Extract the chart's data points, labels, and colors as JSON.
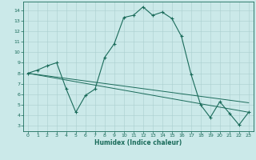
{
  "title": "",
  "xlabel": "Humidex (Indice chaleur)",
  "ylabel": "",
  "bg_color": "#cbe9e9",
  "grid_color": "#aacfcf",
  "line_color": "#1a6b5a",
  "xlim": [
    -0.5,
    23.5
  ],
  "ylim": [
    2.5,
    14.8
  ],
  "yticks": [
    3,
    4,
    5,
    6,
    7,
    8,
    9,
    10,
    11,
    12,
    13,
    14
  ],
  "xticks": [
    0,
    1,
    2,
    3,
    4,
    5,
    6,
    7,
    8,
    9,
    10,
    11,
    12,
    13,
    14,
    15,
    16,
    17,
    18,
    19,
    20,
    21,
    22,
    23
  ],
  "series_main": {
    "x": [
      0,
      1,
      2,
      3,
      4,
      5,
      6,
      7,
      8,
      9,
      10,
      11,
      12,
      13,
      14,
      15,
      16,
      17,
      18,
      19,
      20,
      21,
      22,
      23
    ],
    "y": [
      8.0,
      8.3,
      8.7,
      9.0,
      6.5,
      4.3,
      5.9,
      6.5,
      9.5,
      10.8,
      13.3,
      13.5,
      14.3,
      13.5,
      13.8,
      13.2,
      11.5,
      7.9,
      5.0,
      3.8,
      5.3,
      4.2,
      3.1,
      4.3
    ]
  },
  "trend1": {
    "x": [
      0,
      23
    ],
    "y": [
      8.0,
      4.3
    ]
  },
  "trend2": {
    "x": [
      0,
      23
    ],
    "y": [
      8.0,
      5.2
    ]
  },
  "figsize": [
    3.2,
    2.0
  ],
  "dpi": 100
}
